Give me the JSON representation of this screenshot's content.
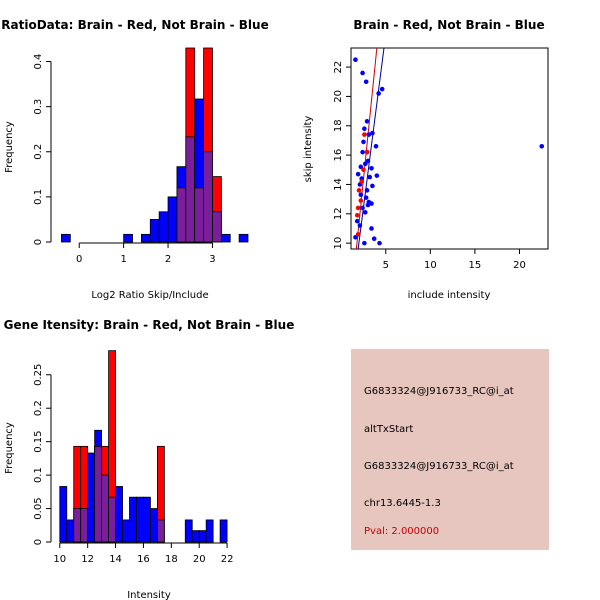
{
  "chart_data": [
    {
      "type": "histogram",
      "title": "RatioData: Brain - Red, Not Brain - Blue",
      "xlabel": "Log2 Ratio Skip/Include",
      "ylabel": "Frequency",
      "xlim": [
        -0.5,
        3.8
      ],
      "ylim": [
        0,
        0.43
      ],
      "xticks": [
        0,
        1,
        2,
        3
      ],
      "yticks": [
        0.0,
        0.1,
        0.2,
        0.3,
        0.4
      ],
      "bin_width": 0.2,
      "series": [
        {
          "name": "Brain",
          "color": "#ff0000",
          "bins": [
            {
              "x0": 2.2,
              "value": 0.12
            },
            {
              "x0": 2.4,
              "value": 0.43
            },
            {
              "x0": 2.6,
              "value": 0.12
            },
            {
              "x0": 2.8,
              "value": 0.43
            },
            {
              "x0": 3.0,
              "value": 0.145
            }
          ]
        },
        {
          "name": "Not Brain",
          "color": "#0000ff",
          "bins": [
            {
              "x0": -0.4,
              "value": 0.017
            },
            {
              "x0": 1.0,
              "value": 0.017
            },
            {
              "x0": 1.4,
              "value": 0.017
            },
            {
              "x0": 1.6,
              "value": 0.05
            },
            {
              "x0": 1.8,
              "value": 0.067
            },
            {
              "x0": 2.0,
              "value": 0.1
            },
            {
              "x0": 2.2,
              "value": 0.167
            },
            {
              "x0": 2.4,
              "value": 0.233
            },
            {
              "x0": 2.6,
              "value": 0.317
            },
            {
              "x0": 2.8,
              "value": 0.2
            },
            {
              "x0": 3.0,
              "value": 0.067
            },
            {
              "x0": 3.2,
              "value": 0.017
            },
            {
              "x0": 3.6,
              "value": 0.017
            }
          ]
        }
      ]
    },
    {
      "type": "scatter",
      "title": "Brain - Red, Not Brain - Blue",
      "xlabel": "include intensity",
      "ylabel": "skip intensity",
      "xlim": [
        1.1,
        23.2
      ],
      "ylim": [
        9.6,
        23.3
      ],
      "xticks": [
        5,
        10,
        15,
        20
      ],
      "yticks": [
        10,
        12,
        14,
        16,
        18,
        20,
        22
      ],
      "series": [
        {
          "name": "Not Brain",
          "color": "#0000ff",
          "points": [
            [
              1.6,
              22.5
            ],
            [
              2.4,
              21.6
            ],
            [
              2.8,
              21.0
            ],
            [
              4.2,
              20.2
            ],
            [
              4.6,
              20.5
            ],
            [
              2.9,
              18.3
            ],
            [
              2.6,
              17.8
            ],
            [
              3.1,
              17.4
            ],
            [
              3.5,
              17.5
            ],
            [
              2.5,
              16.9
            ],
            [
              3.9,
              16.6
            ],
            [
              2.4,
              16.2
            ],
            [
              2.9,
              16.2
            ],
            [
              2.2,
              15.2
            ],
            [
              2.7,
              15.4
            ],
            [
              3.0,
              15.6
            ],
            [
              3.4,
              15.1
            ],
            [
              1.9,
              14.7
            ],
            [
              2.3,
              14.4
            ],
            [
              3.2,
              14.5
            ],
            [
              4.0,
              14.6
            ],
            [
              2.1,
              14.0
            ],
            [
              2.9,
              13.6
            ],
            [
              3.5,
              13.9
            ],
            [
              2.2,
              13.3
            ],
            [
              2.8,
              13.1
            ],
            [
              3.1,
              12.8
            ],
            [
              3.4,
              12.7
            ],
            [
              2.4,
              12.4
            ],
            [
              2.7,
              12.1
            ],
            [
              3.0,
              12.6
            ],
            [
              1.8,
              11.5
            ],
            [
              2.1,
              11.2
            ],
            [
              3.4,
              11.0
            ],
            [
              1.6,
              10.4
            ],
            [
              3.7,
              10.3
            ],
            [
              2.6,
              10.0
            ],
            [
              4.3,
              10.0
            ],
            [
              22.5,
              16.6
            ]
          ]
        },
        {
          "name": "Brain",
          "color": "#ff0000",
          "points": [
            [
              2.6,
              17.4
            ],
            [
              2.9,
              16.2
            ],
            [
              2.5,
              15.0
            ],
            [
              2.3,
              14.2
            ],
            [
              2.0,
              13.6
            ],
            [
              2.2,
              12.9
            ],
            [
              1.9,
              12.4
            ],
            [
              1.8,
              11.9
            ],
            [
              1.9,
              10.6
            ]
          ]
        }
      ],
      "fit_lines": [
        {
          "name": "Brain fit",
          "color": "#cc0000",
          "from": [
            1.7,
            9.6
          ],
          "to": [
            4.0,
            23.3
          ]
        },
        {
          "name": "Not Brain fit",
          "color": "#000099",
          "from": [
            1.9,
            9.6
          ],
          "to": [
            4.8,
            23.3
          ]
        }
      ]
    },
    {
      "type": "histogram",
      "title": "Gene Itensity: Brain - Red, Not Brain - Blue",
      "xlabel": "Intensity",
      "ylabel": "Frequency",
      "xlim": [
        9.8,
        23.5
      ],
      "ylim": [
        0,
        0.29
      ],
      "xticks": [
        10,
        12,
        14,
        16,
        18,
        20,
        22
      ],
      "yticks": [
        0.0,
        0.05,
        0.1,
        0.15,
        0.2,
        0.25
      ],
      "bin_width": 0.5,
      "series": [
        {
          "name": "Brain",
          "color": "#ff0000",
          "bins": [
            {
              "x0": 11.0,
              "value": 0.143
            },
            {
              "x0": 11.5,
              "value": 0.143
            },
            {
              "x0": 12.5,
              "value": 0.143
            },
            {
              "x0": 13.0,
              "value": 0.143
            },
            {
              "x0": 13.5,
              "value": 0.286
            },
            {
              "x0": 17.0,
              "value": 0.143
            }
          ]
        },
        {
          "name": "Not Brain",
          "color": "#0000ff",
          "bins": [
            {
              "x0": 10.0,
              "value": 0.083
            },
            {
              "x0": 10.5,
              "value": 0.033
            },
            {
              "x0": 11.0,
              "value": 0.05
            },
            {
              "x0": 11.5,
              "value": 0.05
            },
            {
              "x0": 12.0,
              "value": 0.133
            },
            {
              "x0": 12.5,
              "value": 0.167
            },
            {
              "x0": 13.0,
              "value": 0.1
            },
            {
              "x0": 13.5,
              "value": 0.067
            },
            {
              "x0": 14.0,
              "value": 0.083
            },
            {
              "x0": 14.5,
              "value": 0.033
            },
            {
              "x0": 15.0,
              "value": 0.067
            },
            {
              "x0": 15.5,
              "value": 0.067
            },
            {
              "x0": 16.0,
              "value": 0.067
            },
            {
              "x0": 16.5,
              "value": 0.05
            },
            {
              "x0": 17.0,
              "value": 0.033
            },
            {
              "x0": 19.0,
              "value": 0.033
            },
            {
              "x0": 19.5,
              "value": 0.017
            },
            {
              "x0": 20.0,
              "value": 0.017
            },
            {
              "x0": 20.5,
              "value": 0.033
            },
            {
              "x0": 21.5,
              "value": 0.033
            }
          ]
        }
      ]
    }
  ],
  "info_panel": {
    "probe_1": "G6833324@J916733_RC@i_at",
    "event_type": "altTxStart",
    "probe_2": "G6833324@J916733_RC@i_at",
    "location": "chr13.6445-1.3",
    "pval": "Pval: 2.000000"
  },
  "colors": {
    "brain": "#ff0000",
    "not_brain": "#0000ff",
    "overlap": "#7a1f9a",
    "panel_bg": "#e6c6bf",
    "pval_text": "#cc0000"
  }
}
